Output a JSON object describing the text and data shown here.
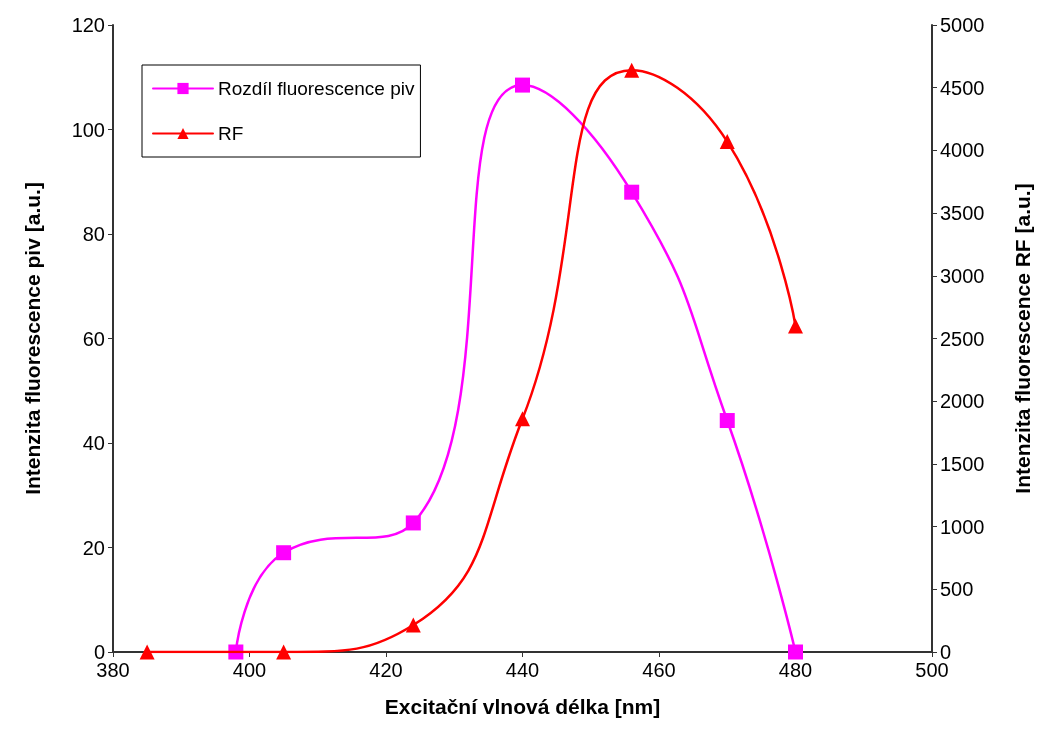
{
  "chart_data": {
    "type": "line",
    "xlabel": "Excitační vlnová délka [nm]",
    "ylabel": "Intenzita fluorescence piv [a.u.]",
    "y2label": "Intenzita fluorescence RF [a.u.]",
    "xlim": [
      380,
      500
    ],
    "xticks": [
      380,
      400,
      420,
      440,
      460,
      480,
      500
    ],
    "ylim": [
      0,
      120
    ],
    "yticks": [
      0,
      20,
      40,
      60,
      80,
      100,
      120
    ],
    "y2lim": [
      0,
      5000
    ],
    "y2ticks": [
      0,
      500,
      1000,
      1500,
      2000,
      2500,
      3000,
      3500,
      4000,
      4500,
      5000
    ],
    "grid": false,
    "legend": "top left",
    "series": [
      {
        "name": "Rozdíl fluorescence piv",
        "color": "#ff00ff",
        "marker": "square",
        "x": [
          398,
          405,
          424,
          440,
          456,
          470,
          480
        ],
        "values": [
          0,
          19,
          24.7,
          108.5,
          88,
          44.3,
          0
        ]
      },
      {
        "name": "RF",
        "color": "#ff0000",
        "marker": "triangle",
        "axis": "y2",
        "x": [
          385,
          405,
          424,
          440,
          456,
          470,
          480
        ],
        "values": [
          0,
          0,
          215,
          1860,
          4640,
          4070,
          2600
        ]
      }
    ]
  }
}
